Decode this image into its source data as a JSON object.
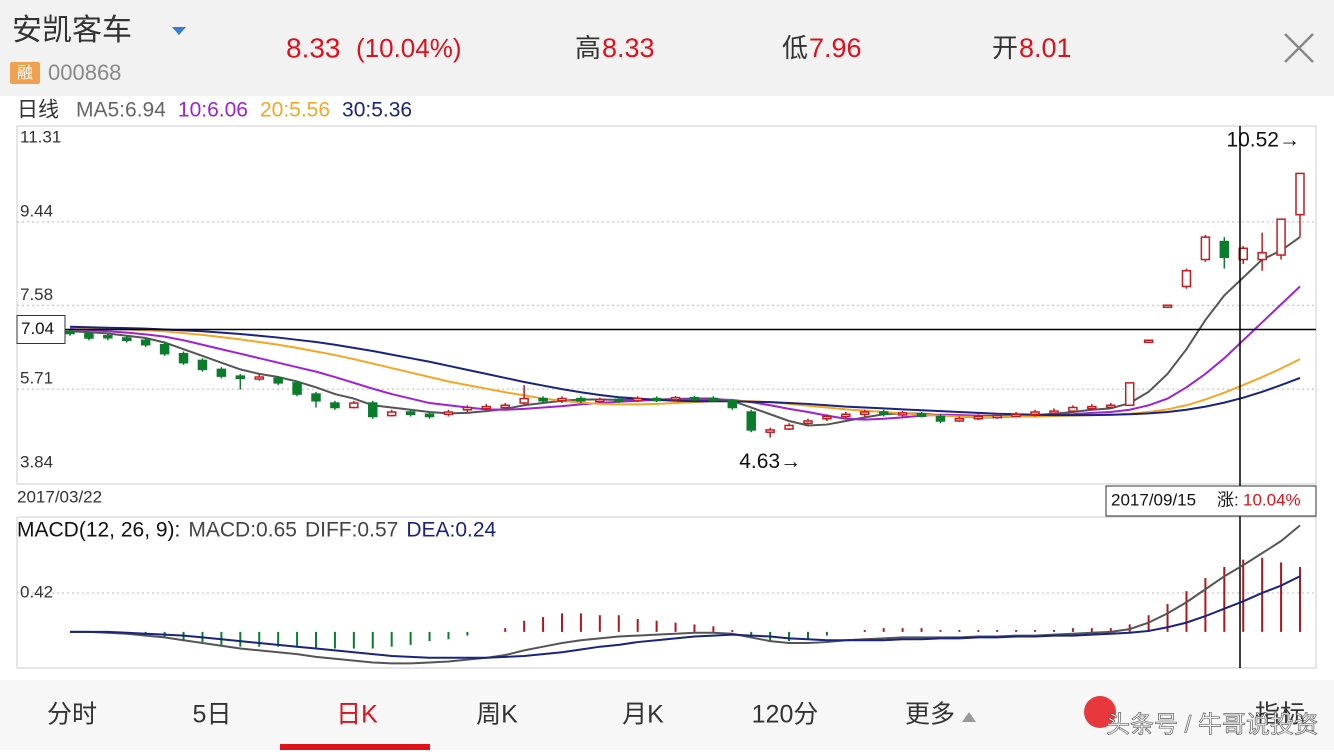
{
  "header": {
    "name": "安凯客车",
    "tag": "融",
    "code": "000868",
    "price": "8.33",
    "change": "(10.04%)",
    "high_label": "高",
    "high": "8.33",
    "low_label": "低",
    "low": "7.96",
    "open_label": "开",
    "open": "8.01"
  },
  "legend_title": "日线",
  "chart_data": [
    {
      "type": "candlestick",
      "ylim": [
        3.84,
        11.31
      ],
      "yticks": [
        11.31,
        9.44,
        7.58,
        5.71,
        3.84
      ],
      "grid": true,
      "start_date": "2017/03/22",
      "end_date": "2017/09/15",
      "change_label": "涨:",
      "change_value": "10.04%",
      "max_label": "10.52→",
      "min_label": "4.63→",
      "crosshair": 7.04,
      "up_color": "#c8191e",
      "down_color": "#0a7d2c",
      "candles": [
        [
          7.0,
          6.95,
          7.05,
          6.9
        ],
        [
          6.95,
          6.85,
          7.0,
          6.8
        ],
        [
          6.9,
          6.88,
          6.95,
          6.8
        ],
        [
          6.85,
          6.8,
          6.9,
          6.75
        ],
        [
          6.8,
          6.7,
          6.85,
          6.65
        ],
        [
          6.7,
          6.5,
          6.75,
          6.45
        ],
        [
          6.5,
          6.3,
          6.55,
          6.25
        ],
        [
          6.35,
          6.15,
          6.4,
          6.1
        ],
        [
          6.15,
          6.0,
          6.2,
          5.95
        ],
        [
          6.0,
          5.95,
          6.05,
          5.7
        ],
        [
          5.95,
          5.98,
          6.05,
          5.9
        ],
        [
          5.95,
          5.85,
          6.0,
          5.8
        ],
        [
          5.85,
          5.6,
          5.9,
          5.55
        ],
        [
          5.6,
          5.45,
          5.65,
          5.3
        ],
        [
          5.4,
          5.3,
          5.45,
          5.25
        ],
        [
          5.3,
          5.4,
          5.45,
          5.28
        ],
        [
          5.4,
          5.1,
          5.45,
          5.05
        ],
        [
          5.12,
          5.2,
          5.25,
          5.1
        ],
        [
          5.2,
          5.15,
          5.25,
          5.1
        ],
        [
          5.15,
          5.1,
          5.2,
          5.05
        ],
        [
          5.15,
          5.2,
          5.25,
          5.1
        ],
        [
          5.25,
          5.3,
          5.35,
          5.2
        ],
        [
          5.3,
          5.32,
          5.38,
          5.25
        ],
        [
          5.3,
          5.35,
          5.4,
          5.28
        ],
        [
          5.4,
          5.5,
          5.8,
          5.35
        ],
        [
          5.5,
          5.45,
          5.55,
          5.4
        ],
        [
          5.45,
          5.5,
          5.55,
          5.4
        ],
        [
          5.5,
          5.45,
          5.55,
          5.4
        ],
        [
          5.45,
          5.48,
          5.52,
          5.4
        ],
        [
          5.48,
          5.45,
          5.52,
          5.4
        ],
        [
          5.45,
          5.5,
          5.55,
          5.42
        ],
        [
          5.5,
          5.48,
          5.55,
          5.42
        ],
        [
          5.48,
          5.52,
          5.56,
          5.44
        ],
        [
          5.52,
          5.5,
          5.56,
          5.45
        ],
        [
          5.5,
          5.46,
          5.55,
          5.42
        ],
        [
          5.45,
          5.3,
          5.48,
          5.25
        ],
        [
          5.2,
          4.8,
          5.25,
          4.75
        ],
        [
          4.75,
          4.8,
          4.85,
          4.63
        ],
        [
          4.82,
          4.9,
          4.95,
          4.8
        ],
        [
          4.95,
          5.0,
          5.05,
          4.9
        ],
        [
          5.05,
          5.1,
          5.15,
          5.0
        ],
        [
          5.1,
          5.15,
          5.2,
          5.05
        ],
        [
          5.15,
          5.2,
          5.25,
          5.1
        ],
        [
          5.2,
          5.15,
          5.25,
          5.1
        ],
        [
          5.15,
          5.18,
          5.22,
          5.1
        ],
        [
          5.15,
          5.12,
          5.2,
          5.08
        ],
        [
          5.1,
          5.0,
          5.15,
          4.95
        ],
        [
          5.0,
          5.05,
          5.1,
          4.98
        ],
        [
          5.05,
          5.1,
          5.15,
          5.02
        ],
        [
          5.1,
          5.12,
          5.16,
          5.05
        ],
        [
          5.12,
          5.15,
          5.2,
          5.08
        ],
        [
          5.15,
          5.2,
          5.25,
          5.1
        ],
        [
          5.2,
          5.22,
          5.28,
          5.15
        ],
        [
          5.22,
          5.3,
          5.35,
          5.18
        ],
        [
          5.3,
          5.32,
          5.38,
          5.25
        ],
        [
          5.33,
          5.35,
          5.4,
          5.3
        ],
        [
          5.35,
          5.85,
          5.86,
          5.34
        ],
        [
          6.8,
          6.8,
          6.8,
          6.8
        ],
        [
          7.58,
          7.58,
          7.58,
          7.58
        ],
        [
          8.0,
          8.35,
          8.4,
          7.95
        ],
        [
          8.6,
          9.1,
          9.15,
          8.55
        ],
        [
          9.0,
          8.65,
          9.1,
          8.4
        ],
        [
          8.6,
          8.85,
          8.9,
          8.5
        ],
        [
          8.6,
          8.75,
          9.2,
          8.35
        ],
        [
          8.7,
          9.5,
          9.5,
          8.6
        ],
        [
          9.6,
          10.52,
          10.52,
          9.1
        ]
      ],
      "series": [
        {
          "name": "MA5:6.94",
          "color": "#555555",
          "values": [
            7.0,
            6.98,
            6.95,
            6.9,
            6.85,
            6.75,
            6.6,
            6.45,
            6.3,
            6.15,
            6.05,
            5.98,
            5.88,
            5.75,
            5.6,
            5.5,
            5.35,
            5.3,
            5.25,
            5.2,
            5.17,
            5.18,
            5.22,
            5.27,
            5.35,
            5.4,
            5.45,
            5.48,
            5.48,
            5.47,
            5.48,
            5.48,
            5.49,
            5.5,
            5.5,
            5.45,
            5.3,
            5.15,
            5.0,
            4.9,
            4.92,
            5.0,
            5.08,
            5.15,
            5.17,
            5.16,
            5.13,
            5.1,
            5.08,
            5.08,
            5.1,
            5.13,
            5.16,
            5.2,
            5.25,
            5.28,
            5.4,
            5.65,
            6.05,
            6.6,
            7.25,
            7.8,
            8.2,
            8.6,
            8.8,
            9.1
          ]
        },
        {
          "name": "10:6.06",
          "color": "#a020d8",
          "values": [
            7.05,
            7.03,
            7.0,
            6.97,
            6.93,
            6.88,
            6.8,
            6.7,
            6.6,
            6.5,
            6.4,
            6.3,
            6.2,
            6.1,
            5.98,
            5.85,
            5.72,
            5.6,
            5.5,
            5.4,
            5.35,
            5.3,
            5.26,
            5.25,
            5.27,
            5.3,
            5.33,
            5.37,
            5.4,
            5.43,
            5.45,
            5.47,
            5.48,
            5.48,
            5.48,
            5.47,
            5.42,
            5.35,
            5.27,
            5.2,
            5.12,
            5.05,
            5.03,
            5.05,
            5.08,
            5.12,
            5.14,
            5.13,
            5.12,
            5.11,
            5.11,
            5.12,
            5.13,
            5.15,
            5.18,
            5.2,
            5.25,
            5.35,
            5.5,
            5.75,
            6.05,
            6.4,
            6.8,
            7.2,
            7.6,
            8.0
          ]
        },
        {
          "name": "20:5.56",
          "color": "#f5a623",
          "values": [
            7.1,
            7.08,
            7.06,
            7.04,
            7.02,
            7.0,
            6.96,
            6.92,
            6.87,
            6.82,
            6.76,
            6.7,
            6.63,
            6.55,
            6.47,
            6.38,
            6.28,
            6.18,
            6.08,
            5.98,
            5.88,
            5.8,
            5.72,
            5.64,
            5.57,
            5.5,
            5.45,
            5.41,
            5.38,
            5.37,
            5.37,
            5.38,
            5.4,
            5.42,
            5.44,
            5.45,
            5.44,
            5.42,
            5.38,
            5.34,
            5.3,
            5.26,
            5.23,
            5.2,
            5.17,
            5.14,
            5.12,
            5.1,
            5.09,
            5.09,
            5.1,
            5.1,
            5.11,
            5.12,
            5.13,
            5.14,
            5.16,
            5.2,
            5.26,
            5.35,
            5.48,
            5.63,
            5.8,
            5.98,
            6.17,
            6.38
          ]
        },
        {
          "name": "30:5.36",
          "color": "#1a237e",
          "values": [
            7.1,
            7.09,
            7.08,
            7.07,
            7.06,
            7.04,
            7.02,
            7.0,
            6.97,
            6.94,
            6.9,
            6.86,
            6.81,
            6.76,
            6.7,
            6.63,
            6.56,
            6.48,
            6.4,
            6.32,
            6.23,
            6.14,
            6.05,
            5.96,
            5.87,
            5.79,
            5.71,
            5.64,
            5.58,
            5.53,
            5.5,
            5.47,
            5.45,
            5.44,
            5.44,
            5.44,
            5.43,
            5.42,
            5.4,
            5.38,
            5.35,
            5.32,
            5.3,
            5.28,
            5.26,
            5.24,
            5.22,
            5.2,
            5.18,
            5.16,
            5.15,
            5.14,
            5.13,
            5.13,
            5.13,
            5.14,
            5.15,
            5.17,
            5.2,
            5.25,
            5.32,
            5.41,
            5.52,
            5.65,
            5.8,
            5.96
          ]
        }
      ]
    },
    {
      "type": "macd",
      "title": "MACD(12, 26, 9):",
      "ylim": [
        -0.39,
        1.24
      ],
      "yticks": [
        0.42
      ],
      "grid": true,
      "up_color": "#b0161b",
      "down_color": "#0a7d2c",
      "bars": {
        "name": "MACD:0.65",
        "values": [
          0,
          0,
          -0.02,
          -0.02,
          -0.04,
          -0.06,
          -0.1,
          -0.12,
          -0.14,
          -0.16,
          -0.16,
          -0.16,
          -0.16,
          -0.18,
          -0.18,
          -0.18,
          -0.18,
          -0.16,
          -0.14,
          -0.1,
          -0.08,
          -0.04,
          0,
          0.04,
          0.12,
          0.16,
          0.2,
          0.2,
          0.18,
          0.18,
          0.14,
          0.12,
          0.1,
          0.08,
          0.06,
          0.02,
          -0.04,
          -0.1,
          -0.1,
          -0.08,
          -0.04,
          0,
          0.02,
          0.04,
          0.04,
          0.04,
          0.02,
          0.02,
          0.02,
          0.02,
          0.02,
          0.02,
          0.02,
          0.04,
          0.04,
          0.04,
          0.08,
          0.18,
          0.3,
          0.44,
          0.58,
          0.7,
          0.78,
          0.8,
          0.75,
          0.7
        ]
      },
      "series": [
        {
          "name": "DIFF:0.57",
          "color": "#555555",
          "values": [
            0,
            0,
            -0.01,
            -0.02,
            -0.04,
            -0.06,
            -0.09,
            -0.12,
            -0.15,
            -0.18,
            -0.2,
            -0.22,
            -0.24,
            -0.27,
            -0.29,
            -0.31,
            -0.33,
            -0.34,
            -0.34,
            -0.33,
            -0.32,
            -0.3,
            -0.28,
            -0.25,
            -0.2,
            -0.16,
            -0.12,
            -0.09,
            -0.07,
            -0.05,
            -0.04,
            -0.03,
            -0.02,
            -0.01,
            -0.01,
            -0.02,
            -0.06,
            -0.1,
            -0.12,
            -0.12,
            -0.11,
            -0.09,
            -0.08,
            -0.07,
            -0.06,
            -0.06,
            -0.06,
            -0.06,
            -0.05,
            -0.05,
            -0.04,
            -0.04,
            -0.03,
            -0.02,
            -0.01,
            0,
            0.03,
            0.1,
            0.2,
            0.32,
            0.46,
            0.6,
            0.72,
            0.85,
            0.98,
            1.15
          ]
        },
        {
          "name": "DEA:0.24",
          "color": "#1a237e",
          "values": [
            0,
            0,
            0,
            -0.01,
            -0.02,
            -0.03,
            -0.04,
            -0.06,
            -0.08,
            -0.1,
            -0.12,
            -0.14,
            -0.16,
            -0.18,
            -0.2,
            -0.22,
            -0.24,
            -0.26,
            -0.27,
            -0.28,
            -0.28,
            -0.28,
            -0.28,
            -0.27,
            -0.26,
            -0.24,
            -0.22,
            -0.19,
            -0.16,
            -0.14,
            -0.11,
            -0.09,
            -0.07,
            -0.05,
            -0.04,
            -0.03,
            -0.04,
            -0.05,
            -0.07,
            -0.08,
            -0.09,
            -0.09,
            -0.09,
            -0.09,
            -0.08,
            -0.08,
            -0.07,
            -0.07,
            -0.06,
            -0.06,
            -0.05,
            -0.05,
            -0.04,
            -0.04,
            -0.03,
            -0.02,
            -0.01,
            0.01,
            0.05,
            0.1,
            0.17,
            0.25,
            0.33,
            0.42,
            0.5,
            0.6
          ]
        }
      ]
    }
  ],
  "tabs": [
    "分时",
    "5日",
    "日K",
    "周K",
    "月K",
    "120分",
    "更多",
    "指标"
  ],
  "watermark": "头条号 / 牛哥说投资"
}
